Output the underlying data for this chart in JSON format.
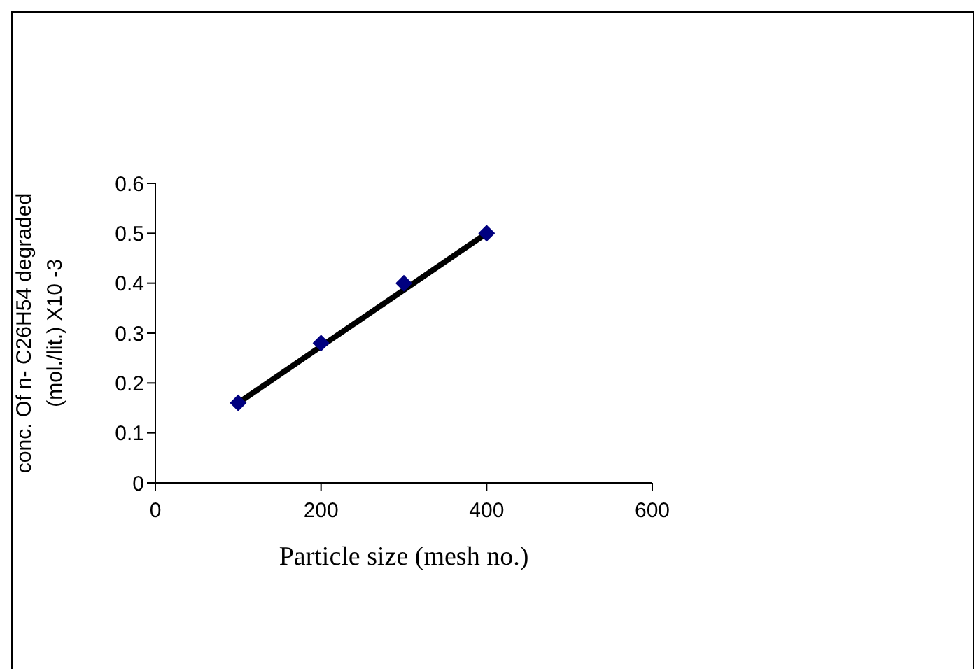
{
  "chart_data": {
    "type": "scatter",
    "xlabel": "Particle size (mesh no.)",
    "ylabel": "conc. Of n- C26H54  degraded\n(mol./lit.)  X10 -3",
    "x": [
      100,
      200,
      300,
      400
    ],
    "series": [
      {
        "color": "#000080",
        "marker": "diamond",
        "values": [
          0.16,
          0.28,
          0.4,
          0.5
        ]
      },
      {
        "type": "line",
        "color": "#000000",
        "x": [
          100,
          400
        ],
        "values": [
          0.16,
          0.5
        ],
        "marker": "none"
      }
    ],
    "xlim": [
      0,
      600
    ],
    "xticks": [
      0,
      200,
      400,
      600
    ],
    "ylim": [
      0,
      0.6
    ],
    "yticks": [
      0,
      0.1,
      0.2,
      0.3,
      0.4,
      0.5,
      0.6
    ],
    "grid": false,
    "legend": false
  }
}
